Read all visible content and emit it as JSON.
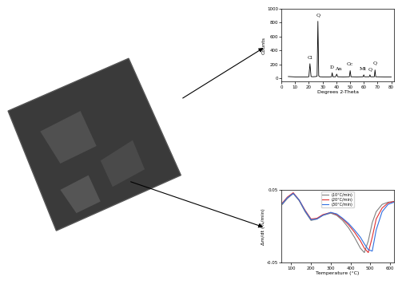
{
  "chart_data": [
    {
      "type": "line",
      "ylabel": "Counts",
      "xlabel": "Degrees 2-Theta",
      "x": [
        5,
        10,
        15,
        19,
        20,
        20.8,
        21.6,
        23,
        25,
        26,
        26.6,
        27.2,
        28,
        30,
        35,
        36.5,
        37,
        37.5,
        39.5,
        40.3,
        41,
        45,
        49.5,
        50.1,
        50.7,
        55,
        59.5,
        60,
        60.5,
        64,
        64.5,
        65,
        67.7,
        68.2,
        68.7,
        75,
        80
      ],
      "values": [
        25,
        20,
        20,
        20,
        22,
        210,
        25,
        22,
        25,
        30,
        820,
        35,
        22,
        20,
        20,
        22,
        80,
        22,
        22,
        60,
        22,
        20,
        22,
        110,
        22,
        20,
        22,
        50,
        22,
        22,
        50,
        22,
        22,
        120,
        22,
        20,
        20
      ],
      "color": "#000000",
      "xlim": [
        0,
        82
      ],
      "xticks": [
        0,
        10,
        20,
        30,
        40,
        50,
        60,
        70,
        80
      ],
      "ylim": [
        -50,
        1000
      ],
      "yticks": [
        0,
        200,
        400,
        600,
        800,
        1000
      ],
      "annotations": [
        {
          "text": "Q",
          "x": 26.6,
          "y": 880
        },
        {
          "text": "Cl",
          "x": 20.8,
          "y": 270
        },
        {
          "text": "D",
          "x": 37,
          "y": 130
        },
        {
          "text": "An",
          "x": 41.5,
          "y": 110
        },
        {
          "text": "Cc",
          "x": 50.1,
          "y": 170
        },
        {
          "text": "Mt",
          "x": 59.5,
          "y": 100
        },
        {
          "text": "Q",
          "x": 64.5,
          "y": 100
        },
        {
          "text": "Q",
          "x": 68.2,
          "y": 190
        }
      ]
    },
    {
      "type": "line",
      "ylabel": "Δm/dt (%/min)",
      "xlabel": "Temperature (°C)",
      "x": [
        55,
        80,
        110,
        140,
        170,
        200,
        230,
        260,
        300,
        330,
        360,
        390,
        420,
        450,
        470,
        490,
        510,
        530,
        560,
        590,
        620
      ],
      "series": [
        {
          "name": "(10°C/min)",
          "color": "#808080",
          "values": [
            0.03,
            0.038,
            0.045,
            0.035,
            0.02,
            0.008,
            0.01,
            0.015,
            0.018,
            0.015,
            0.008,
            -0.002,
            -0.015,
            -0.03,
            -0.036,
            -0.02,
            0.005,
            0.02,
            0.03,
            0.033,
            0.034
          ]
        },
        {
          "name": "(20°C/min)",
          "color": "#e03030",
          "values": [
            0.032,
            0.04,
            0.046,
            0.036,
            0.022,
            0.01,
            0.011,
            0.016,
            0.019,
            0.016,
            0.01,
            0.002,
            -0.008,
            -0.02,
            -0.03,
            -0.036,
            -0.015,
            0.01,
            0.025,
            0.032,
            0.034
          ]
        },
        {
          "name": "(30°C/min)",
          "color": "#3070e0",
          "values": [
            0.031,
            0.039,
            0.045,
            0.036,
            0.021,
            0.009,
            0.01,
            0.015,
            0.019,
            0.017,
            0.011,
            0.004,
            -0.005,
            -0.015,
            -0.024,
            -0.032,
            -0.034,
            -0.005,
            0.02,
            0.03,
            0.033
          ]
        }
      ],
      "xlim": [
        50,
        620
      ],
      "xticks": [
        100,
        200,
        300,
        400,
        500,
        600
      ],
      "ylim": [
        -0.05,
        0.05
      ],
      "yticks": [
        -0.05,
        0.05
      ],
      "legend": "upper center"
    }
  ]
}
